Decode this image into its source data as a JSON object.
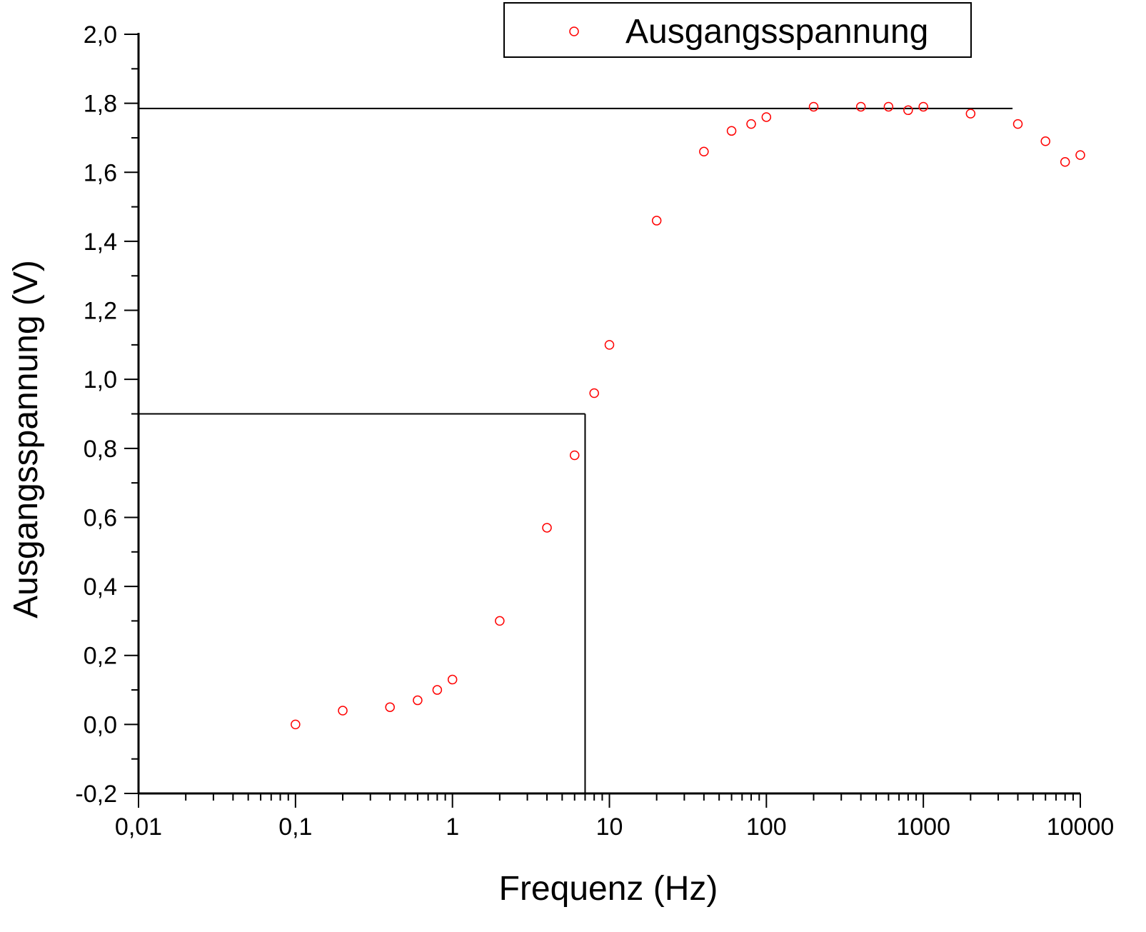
{
  "chart_data": {
    "type": "scatter",
    "xscale": "log",
    "xlim": [
      0.01,
      10000
    ],
    "ylim": [
      -0.2,
      2.0
    ],
    "xlabel": "Frequenz (Hz)",
    "ylabel": "Ausgangsspannung (V)",
    "x_ticks": [
      "0,01",
      "0,1",
      "1",
      "10",
      "100",
      "1000",
      "10000"
    ],
    "y_ticks": [
      "-0,2",
      "0,0",
      "0,2",
      "0,4",
      "0,6",
      "0,8",
      "1,0",
      "1,2",
      "1,4",
      "1,6",
      "1,8",
      "2,0"
    ],
    "legend_position": "top-right",
    "marker_color": "#ff0000",
    "series": [
      {
        "name": "Ausgangsspannung",
        "x": [
          0.1,
          0.2,
          0.4,
          0.6,
          0.8,
          1,
          2,
          4,
          6,
          8,
          10,
          20,
          40,
          60,
          80,
          100,
          200,
          400,
          600,
          800,
          1000,
          2000,
          4000,
          6000,
          8000,
          10000
        ],
        "y": [
          0.0,
          0.04,
          0.05,
          0.07,
          0.1,
          0.13,
          0.3,
          0.57,
          0.78,
          0.96,
          1.1,
          1.46,
          1.66,
          1.72,
          1.74,
          1.76,
          1.79,
          1.79,
          1.79,
          1.78,
          1.79,
          1.77,
          1.74,
          1.69,
          1.63,
          1.65
        ]
      }
    ],
    "reference_lines": [
      {
        "type": "horizontal",
        "y": 1.785,
        "x_from": 0.01,
        "x_to": 3700
      },
      {
        "type": "horizontal",
        "y": 0.9,
        "x_from": 0.01,
        "x_to": 7
      },
      {
        "type": "vertical",
        "x": 7,
        "y_from": -0.2,
        "y_to": 0.9
      }
    ]
  }
}
